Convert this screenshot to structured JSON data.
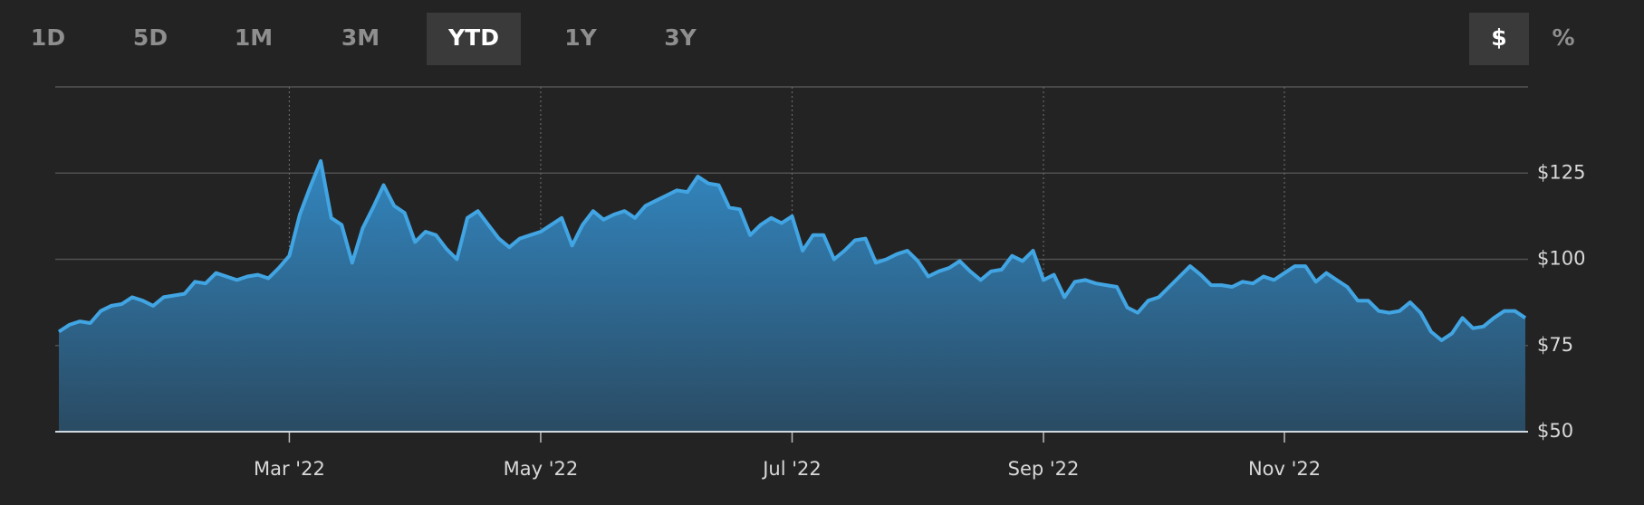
{
  "range_buttons": {
    "items": [
      "1D",
      "5D",
      "1M",
      "3M",
      "YTD",
      "1Y",
      "3Y"
    ],
    "active": 4
  },
  "unit_buttons": {
    "items": [
      "$",
      "%"
    ],
    "active": 0
  },
  "chart_data": {
    "type": "area",
    "color": "#42a5e3",
    "categories": [
      null,
      null,
      null,
      null,
      null,
      null,
      null,
      null,
      null,
      null,
      null,
      null,
      null,
      null,
      null,
      null,
      null,
      null,
      null,
      null,
      null,
      null,
      "Mar '22",
      null,
      null,
      null,
      null,
      null,
      null,
      null,
      null,
      null,
      null,
      null,
      null,
      null,
      null,
      null,
      null,
      null,
      null,
      null,
      null,
      null,
      null,
      null,
      "May '22",
      null,
      null,
      null,
      null,
      null,
      null,
      null,
      null,
      null,
      null,
      null,
      null,
      null,
      null,
      null,
      null,
      null,
      null,
      null,
      null,
      null,
      null,
      null,
      "Jul '22",
      null,
      null,
      null,
      null,
      null,
      null,
      null,
      null,
      null,
      null,
      null,
      null,
      null,
      null,
      null,
      null,
      null,
      null,
      null,
      null,
      null,
      null,
      null,
      "Sep '22",
      null,
      null,
      null,
      null,
      null,
      null,
      null,
      null,
      null,
      null,
      null,
      null,
      null,
      null,
      null,
      null,
      null,
      null,
      null,
      null,
      null,
      null,
      "Nov '22",
      null,
      null,
      null,
      null,
      null,
      null,
      null,
      null,
      null,
      null,
      null,
      null,
      null,
      null,
      null,
      null,
      null,
      null,
      null,
      null,
      null,
      null,
      null
    ],
    "values": [
      79,
      81,
      82,
      81.5,
      85,
      86.5,
      87,
      89,
      88,
      86.5,
      89,
      89.5,
      90,
      93.5,
      93,
      96,
      95,
      94,
      95,
      95.5,
      94.5,
      97.5,
      101,
      113,
      121,
      128.5,
      112,
      110,
      99,
      109,
      115,
      121.5,
      115.5,
      113.5,
      105,
      108,
      107,
      103,
      100,
      112,
      114,
      110,
      106,
      103.5,
      106,
      107,
      108,
      110,
      112,
      104,
      110,
      114,
      111.5,
      113,
      114,
      112,
      115.5,
      117,
      118.5,
      120,
      119.5,
      124,
      122,
      121.5,
      115,
      114.5,
      107,
      110,
      112,
      110.5,
      112.5,
      102.5,
      107,
      107,
      100,
      102.5,
      105.5,
      106,
      99,
      100,
      101.5,
      102.5,
      99.5,
      95,
      96.5,
      97.5,
      99.5,
      96.5,
      94,
      96.5,
      97,
      101,
      99.5,
      102.5,
      94,
      95.5,
      89,
      93.5,
      94,
      93,
      92.5,
      92,
      86,
      84.5,
      88,
      89,
      92,
      95,
      98,
      95.5,
      92.5,
      92.5,
      92,
      93.5,
      93,
      95,
      94,
      96,
      98,
      98,
      93.5,
      96,
      94,
      92,
      88,
      88,
      85,
      84.5,
      85,
      87.5,
      84.5,
      79,
      76.5,
      78.5,
      83,
      80,
      80.5,
      83,
      85,
      85,
      83
    ],
    "ylim": [
      50,
      150
    ],
    "yticks": [
      {
        "value": 50,
        "label": "$50"
      },
      {
        "value": 75,
        "label": "$75"
      },
      {
        "value": 100,
        "label": "$100"
      },
      {
        "value": 125,
        "label": "$125"
      }
    ],
    "grid": true
  }
}
